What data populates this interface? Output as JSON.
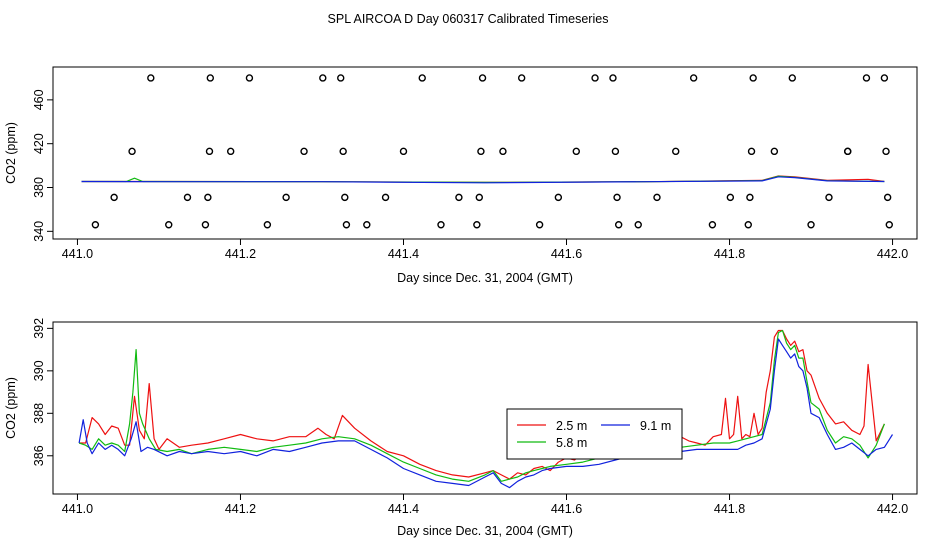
{
  "figure": {
    "title": "SPL AIRCOA D  Day 060317  Calibrated Timeseries"
  },
  "chart_data": [
    {
      "type": "scatter",
      "title": "",
      "xlabel": "Day since Dec. 31, 2004 (GMT)",
      "ylabel": "CO2 (ppm)",
      "xlim": [
        440.97,
        442.03
      ],
      "ylim": [
        333,
        490
      ],
      "xticks": [
        441.0,
        441.2,
        441.4,
        441.6,
        441.8,
        442.0
      ],
      "xtick_labels": [
        "441.0",
        "441.2",
        "441.4",
        "441.6",
        "441.8",
        "442.0"
      ],
      "yticks": [
        340,
        380,
        420,
        460
      ],
      "ytick_labels": [
        "340",
        "380",
        "420",
        "460"
      ],
      "grid": false,
      "legend": "none",
      "series": [
        {
          "marker": "open-circle",
          "color": "#000000",
          "points": [
            [
              441.022,
              346
            ],
            [
              441.045,
              371
            ],
            [
              441.067,
              413
            ],
            [
              441.09,
              480
            ],
            [
              441.112,
              346
            ],
            [
              441.135,
              371
            ],
            [
              441.157,
              346
            ],
            [
              441.16,
              371
            ],
            [
              441.162,
              413
            ],
            [
              441.163,
              480
            ],
            [
              441.188,
              413
            ],
            [
              441.211,
              480
            ],
            [
              441.233,
              346
            ],
            [
              441.256,
              371
            ],
            [
              441.278,
              413
            ],
            [
              441.301,
              480
            ],
            [
              441.323,
              480
            ],
            [
              441.326,
              413
            ],
            [
              441.328,
              371
            ],
            [
              441.33,
              346
            ],
            [
              441.355,
              346
            ],
            [
              441.378,
              371
            ],
            [
              441.4,
              413
            ],
            [
              441.423,
              480
            ],
            [
              441.446,
              346
            ],
            [
              441.468,
              371
            ],
            [
              441.49,
              346
            ],
            [
              441.493,
              371
            ],
            [
              441.495,
              413
            ],
            [
              441.497,
              480
            ],
            [
              441.522,
              413
            ],
            [
              441.545,
              480
            ],
            [
              441.567,
              346
            ],
            [
              441.59,
              371
            ],
            [
              441.612,
              413
            ],
            [
              441.635,
              480
            ],
            [
              441.657,
              480
            ],
            [
              441.66,
              413
            ],
            [
              441.662,
              371
            ],
            [
              441.664,
              346
            ],
            [
              441.688,
              346
            ],
            [
              441.711,
              371
            ],
            [
              441.734,
              413
            ],
            [
              441.756,
              480
            ],
            [
              441.779,
              346
            ],
            [
              441.801,
              371
            ],
            [
              441.823,
              346
            ],
            [
              441.825,
              371
            ],
            [
              441.827,
              413
            ],
            [
              441.829,
              480
            ],
            [
              441.855,
              413
            ],
            [
              441.877,
              480
            ],
            [
              441.9,
              346
            ],
            [
              441.922,
              371
            ],
            [
              441.945,
              413
            ],
            [
              441.945,
              413
            ],
            [
              441.968,
              480
            ],
            [
              441.99,
              480
            ],
            [
              441.992,
              413
            ],
            [
              441.994,
              371
            ],
            [
              441.996,
              346
            ]
          ]
        },
        {
          "name": "",
          "color": "#ee1111",
          "x": [
            441.005,
            441.1,
            441.3,
            441.5,
            441.7,
            441.84,
            441.86,
            441.88,
            441.92,
            441.97,
            441.99
          ],
          "values": [
            385.5,
            385.5,
            385.3,
            384.7,
            385.3,
            386.5,
            390.5,
            389.8,
            386.5,
            387.5,
            385.5
          ]
        },
        {
          "name": "",
          "color": "#11bb11",
          "x": [
            441.005,
            441.06,
            441.07,
            441.08,
            441.3,
            441.5,
            441.7,
            441.84,
            441.86,
            441.88,
            441.92,
            441.99
          ],
          "values": [
            385.5,
            385.5,
            388.5,
            385.5,
            385.3,
            384.7,
            385.3,
            386.3,
            390.3,
            389.3,
            386.2,
            385.5
          ]
        },
        {
          "name": "",
          "color": "#1122dd",
          "x": [
            441.005,
            441.1,
            441.3,
            441.5,
            441.7,
            441.84,
            441.86,
            441.88,
            441.92,
            441.99
          ],
          "values": [
            385.5,
            385.3,
            385.3,
            384.3,
            385.3,
            386.0,
            389.8,
            389.0,
            386.0,
            385.5
          ]
        }
      ]
    },
    {
      "type": "line",
      "title": "",
      "xlabel": "Day since Dec. 31, 2004 (GMT)",
      "ylabel": "CO2 (ppm)",
      "xlim": [
        440.97,
        442.03
      ],
      "ylim": [
        384.2,
        392.3
      ],
      "xticks": [
        441.0,
        441.2,
        441.4,
        441.6,
        441.8,
        442.0
      ],
      "xtick_labels": [
        "441.0",
        "441.2",
        "441.4",
        "441.6",
        "441.8",
        "442.0"
      ],
      "yticks": [
        386,
        388,
        390,
        392
      ],
      "ytick_labels": [
        "386",
        "388",
        "390",
        "392"
      ],
      "grid": false,
      "legend": "center-right",
      "series": [
        {
          "name": "2.5 m",
          "color": "#ee1111",
          "x": [
            441.002,
            441.01,
            441.018,
            441.026,
            441.034,
            441.042,
            441.05,
            441.058,
            441.064,
            441.07,
            441.076,
            441.082,
            441.088,
            441.094,
            441.1,
            441.11,
            441.125,
            441.14,
            441.16,
            441.18,
            441.2,
            441.22,
            441.24,
            441.26,
            441.28,
            441.295,
            441.305,
            441.315,
            441.325,
            441.34,
            441.36,
            441.38,
            441.4,
            441.42,
            441.44,
            441.46,
            441.48,
            441.5,
            441.51,
            441.52,
            441.53,
            441.54,
            441.55,
            441.56,
            441.57,
            441.58,
            441.59,
            441.6,
            441.61,
            441.62,
            441.63,
            441.64,
            441.65,
            441.66,
            441.67,
            441.68,
            441.69,
            441.7,
            441.71,
            441.72,
            441.73,
            441.74,
            441.75,
            441.76,
            441.77,
            441.78,
            441.79,
            441.795,
            441.8,
            441.805,
            441.81,
            441.815,
            441.82,
            441.825,
            441.83,
            441.835,
            441.84,
            441.845,
            441.85,
            441.855,
            441.86,
            441.865,
            441.87,
            441.875,
            441.88,
            441.885,
            441.89,
            441.895,
            441.9,
            441.91,
            441.92,
            441.93,
            441.94,
            441.95,
            441.96,
            441.965,
            441.97,
            441.98,
            441.99
          ],
          "values": [
            386.6,
            386.6,
            387.8,
            387.5,
            387.0,
            387.4,
            387.3,
            386.5,
            386.5,
            388.8,
            387.2,
            386.8,
            389.4,
            386.8,
            386.3,
            386.8,
            386.4,
            386.5,
            386.6,
            386.8,
            387.0,
            386.8,
            386.7,
            386.9,
            386.9,
            387.3,
            387.0,
            386.8,
            387.9,
            387.3,
            386.7,
            386.2,
            386.0,
            385.6,
            385.3,
            385.1,
            385.0,
            385.2,
            385.3,
            385.1,
            384.9,
            385.2,
            385.1,
            385.4,
            385.5,
            385.3,
            385.7,
            385.9,
            385.8,
            386.2,
            386.2,
            386.6,
            386.5,
            386.7,
            386.9,
            386.6,
            387.0,
            387.1,
            387.3,
            387.1,
            387.4,
            386.9,
            386.7,
            386.6,
            386.5,
            386.9,
            387.0,
            388.7,
            386.8,
            387.0,
            388.8,
            386.8,
            387.0,
            386.9,
            388.0,
            387.0,
            387.3,
            389.0,
            390.0,
            391.6,
            391.9,
            391.9,
            391.5,
            391.2,
            391.4,
            390.9,
            391.0,
            390.0,
            389.8,
            388.7,
            388.0,
            387.5,
            387.6,
            387.2,
            387.0,
            387.4,
            390.3,
            386.7,
            387.5
          ]
        },
        {
          "name": "5.8 m",
          "color": "#11bb11",
          "x": [
            441.002,
            441.01,
            441.018,
            441.026,
            441.034,
            441.042,
            441.05,
            441.058,
            441.064,
            441.068,
            441.072,
            441.076,
            441.08,
            441.088,
            441.096,
            441.11,
            441.125,
            441.14,
            441.16,
            441.18,
            441.2,
            441.22,
            441.24,
            441.26,
            441.28,
            441.3,
            441.32,
            441.34,
            441.36,
            441.38,
            441.4,
            441.42,
            441.44,
            441.46,
            441.48,
            441.5,
            441.51,
            441.52,
            441.53,
            441.54,
            441.55,
            441.56,
            441.57,
            441.58,
            441.6,
            441.62,
            441.64,
            441.66,
            441.68,
            441.7,
            441.72,
            441.74,
            441.76,
            441.78,
            441.8,
            441.81,
            441.82,
            441.83,
            441.84,
            441.85,
            441.855,
            441.86,
            441.865,
            441.87,
            441.875,
            441.88,
            441.885,
            441.89,
            441.895,
            441.9,
            441.91,
            441.92,
            441.93,
            441.94,
            441.95,
            441.96,
            441.97,
            441.98,
            441.99
          ],
          "values": [
            386.6,
            386.5,
            386.3,
            386.8,
            386.5,
            386.6,
            386.5,
            386.2,
            387.5,
            389.0,
            391.0,
            388.0,
            387.5,
            386.8,
            386.3,
            386.2,
            386.3,
            386.1,
            386.3,
            386.4,
            386.3,
            386.2,
            386.4,
            386.5,
            386.6,
            386.8,
            386.9,
            386.8,
            386.5,
            386.1,
            385.7,
            385.4,
            385.1,
            384.9,
            384.8,
            385.1,
            385.3,
            384.8,
            384.9,
            385.0,
            385.2,
            385.3,
            385.4,
            385.5,
            385.6,
            385.7,
            385.9,
            386.0,
            386.2,
            386.3,
            386.4,
            386.4,
            386.5,
            386.6,
            386.6,
            386.7,
            386.8,
            386.9,
            387.0,
            388.5,
            390.5,
            391.8,
            391.9,
            391.3,
            391.0,
            391.2,
            390.6,
            390.6,
            389.5,
            388.5,
            388.2,
            387.2,
            386.6,
            386.9,
            386.8,
            386.5,
            385.9,
            386.5,
            387.5
          ]
        },
        {
          "name": "9.1 m",
          "color": "#1122dd",
          "x": [
            441.002,
            441.007,
            441.012,
            441.018,
            441.026,
            441.034,
            441.042,
            441.05,
            441.058,
            441.066,
            441.072,
            441.078,
            441.086,
            441.094,
            441.11,
            441.125,
            441.14,
            441.16,
            441.18,
            441.2,
            441.22,
            441.24,
            441.26,
            441.28,
            441.3,
            441.32,
            441.34,
            441.36,
            441.38,
            441.4,
            441.42,
            441.44,
            441.46,
            441.48,
            441.5,
            441.51,
            441.52,
            441.53,
            441.54,
            441.55,
            441.56,
            441.57,
            441.58,
            441.6,
            441.62,
            441.64,
            441.66,
            441.68,
            441.7,
            441.72,
            441.74,
            441.76,
            441.78,
            441.8,
            441.81,
            441.82,
            441.83,
            441.84,
            441.85,
            441.855,
            441.86,
            441.865,
            441.87,
            441.875,
            441.88,
            441.885,
            441.89,
            441.895,
            441.9,
            441.91,
            441.92,
            441.93,
            441.94,
            441.95,
            441.96,
            441.97,
            441.98,
            441.99,
            442.0
          ],
          "values": [
            386.6,
            387.7,
            386.6,
            386.1,
            386.6,
            386.3,
            386.5,
            386.3,
            386.0,
            386.8,
            387.6,
            386.2,
            386.4,
            386.3,
            386.0,
            386.2,
            386.1,
            386.2,
            386.1,
            386.2,
            386.0,
            386.3,
            386.2,
            386.4,
            386.6,
            386.7,
            386.7,
            386.3,
            385.9,
            385.4,
            385.1,
            384.8,
            384.7,
            384.6,
            385.0,
            385.2,
            384.7,
            384.5,
            384.8,
            385.0,
            385.1,
            385.3,
            385.4,
            385.5,
            385.5,
            385.6,
            385.8,
            386.0,
            386.0,
            386.1,
            386.2,
            386.3,
            386.3,
            386.3,
            386.3,
            386.5,
            386.6,
            386.8,
            388.2,
            390.0,
            391.5,
            391.2,
            390.9,
            390.6,
            390.8,
            390.2,
            390.0,
            389.2,
            388.0,
            387.8,
            387.0,
            386.3,
            386.4,
            386.6,
            386.3,
            386.0,
            386.3,
            386.4,
            387.0
          ]
        }
      ]
    }
  ]
}
